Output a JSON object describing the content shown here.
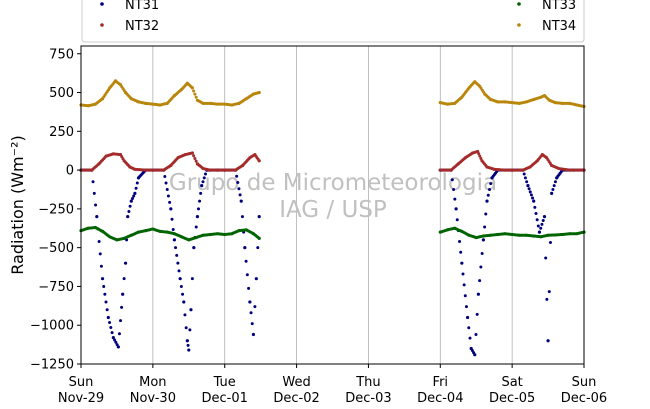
{
  "chart_data": {
    "type": "scatter",
    "ylabel": "Radiation (Wm⁻²)",
    "watermark": [
      "Grupo de Micrometeorologia",
      "IAG / USP"
    ],
    "ylim": [
      -1250,
      800
    ],
    "yticks": [
      -1250,
      -1000,
      -750,
      -500,
      -250,
      0,
      250,
      500,
      750
    ],
    "ytick_labels": [
      "−1250",
      "−1000",
      "−750",
      "−500",
      "−250",
      "0",
      "250",
      "500",
      "750"
    ],
    "xlim": [
      0,
      7
    ],
    "xticks": [
      {
        "day": 0,
        "line1": "Sun",
        "line2": "Nov-29"
      },
      {
        "day": 1,
        "line1": "Mon",
        "line2": "Nov-30"
      },
      {
        "day": 2,
        "line1": "Tue",
        "line2": "Dec-01"
      },
      {
        "day": 3,
        "line1": "Wed",
        "line2": "Dec-02"
      },
      {
        "day": 4,
        "line1": "Thu",
        "line2": "Dec-03"
      },
      {
        "day": 5,
        "line1": "Fri",
        "line2": "Dec-04"
      },
      {
        "day": 6,
        "line1": "Sat",
        "line2": "Dec-05"
      },
      {
        "day": 7,
        "line1": "Sun",
        "line2": "Dec-06"
      }
    ],
    "grid": "vertical",
    "legend_position": "above plot",
    "series": [
      {
        "name": "NT31",
        "color": "#00007f",
        "points": [
          [
            0.0,
            0
          ],
          [
            0.15,
            0
          ],
          [
            0.22,
            -300
          ],
          [
            0.3,
            -700
          ],
          [
            0.38,
            -950
          ],
          [
            0.45,
            -1080
          ],
          [
            0.52,
            -1140
          ],
          [
            0.58,
            -800
          ],
          [
            0.62,
            -600
          ],
          [
            0.65,
            -300
          ],
          [
            0.7,
            -200
          ],
          [
            0.75,
            -150
          ],
          [
            0.8,
            -50
          ],
          [
            0.9,
            0
          ],
          [
            1.0,
            0
          ],
          [
            1.15,
            0
          ],
          [
            1.25,
            -250
          ],
          [
            1.3,
            -450
          ],
          [
            1.38,
            -700
          ],
          [
            1.43,
            -850
          ],
          [
            1.48,
            -1100
          ],
          [
            1.5,
            -1160
          ],
          [
            1.53,
            -900
          ],
          [
            1.57,
            -500
          ],
          [
            1.62,
            -300
          ],
          [
            1.68,
            -100
          ],
          [
            1.75,
            0
          ],
          [
            1.9,
            0
          ],
          [
            2.0,
            0
          ],
          [
            2.15,
            0
          ],
          [
            2.23,
            -200
          ],
          [
            2.28,
            -500
          ],
          [
            2.35,
            -850
          ],
          [
            2.4,
            -1060
          ],
          [
            2.44,
            -700
          ],
          [
            2.48,
            -300
          ],
          [
            5.0,
            0
          ],
          [
            5.15,
            0
          ],
          [
            5.22,
            -250
          ],
          [
            5.3,
            -600
          ],
          [
            5.38,
            -950
          ],
          [
            5.43,
            -1150
          ],
          [
            5.48,
            -1190
          ],
          [
            5.53,
            -800
          ],
          [
            5.6,
            -450
          ],
          [
            5.65,
            -200
          ],
          [
            5.72,
            -50
          ],
          [
            5.8,
            0
          ],
          [
            6.0,
            0
          ],
          [
            6.15,
            0
          ],
          [
            6.22,
            -100
          ],
          [
            6.3,
            -200
          ],
          [
            6.38,
            -400
          ],
          [
            6.45,
            -300
          ],
          [
            6.5,
            -1100
          ],
          [
            6.55,
            -150
          ],
          [
            6.62,
            -50
          ],
          [
            6.7,
            0
          ],
          [
            6.85,
            0
          ],
          [
            7.0,
            0
          ]
        ]
      },
      {
        "name": "NT32",
        "color": "#a52a2a",
        "points": [
          [
            0.0,
            0
          ],
          [
            0.15,
            0
          ],
          [
            0.25,
            40
          ],
          [
            0.35,
            90
          ],
          [
            0.45,
            105
          ],
          [
            0.55,
            100
          ],
          [
            0.6,
            60
          ],
          [
            0.68,
            20
          ],
          [
            0.75,
            5
          ],
          [
            0.9,
            0
          ],
          [
            1.0,
            0
          ],
          [
            1.15,
            0
          ],
          [
            1.25,
            30
          ],
          [
            1.35,
            80
          ],
          [
            1.45,
            100
          ],
          [
            1.55,
            110
          ],
          [
            1.62,
            40
          ],
          [
            1.7,
            10
          ],
          [
            1.8,
            0
          ],
          [
            2.0,
            0
          ],
          [
            2.15,
            0
          ],
          [
            2.25,
            30
          ],
          [
            2.35,
            80
          ],
          [
            2.42,
            100
          ],
          [
            2.48,
            60
          ],
          [
            5.0,
            0
          ],
          [
            5.15,
            0
          ],
          [
            5.25,
            40
          ],
          [
            5.35,
            80
          ],
          [
            5.45,
            110
          ],
          [
            5.52,
            120
          ],
          [
            5.58,
            60
          ],
          [
            5.65,
            20
          ],
          [
            5.75,
            5
          ],
          [
            5.9,
            0
          ],
          [
            6.0,
            0
          ],
          [
            6.15,
            0
          ],
          [
            6.25,
            20
          ],
          [
            6.35,
            60
          ],
          [
            6.42,
            100
          ],
          [
            6.48,
            80
          ],
          [
            6.55,
            30
          ],
          [
            6.65,
            10
          ],
          [
            6.8,
            0
          ],
          [
            7.0,
            0
          ]
        ]
      },
      {
        "name": "NT33",
        "color": "#006400",
        "points": [
          [
            0.0,
            -390
          ],
          [
            0.1,
            -375
          ],
          [
            0.2,
            -370
          ],
          [
            0.3,
            -395
          ],
          [
            0.4,
            -430
          ],
          [
            0.5,
            -450
          ],
          [
            0.6,
            -440
          ],
          [
            0.7,
            -420
          ],
          [
            0.8,
            -400
          ],
          [
            0.9,
            -390
          ],
          [
            1.0,
            -380
          ],
          [
            1.1,
            -395
          ],
          [
            1.2,
            -400
          ],
          [
            1.3,
            -410
          ],
          [
            1.4,
            -430
          ],
          [
            1.5,
            -450
          ],
          [
            1.6,
            -435
          ],
          [
            1.7,
            -420
          ],
          [
            1.8,
            -415
          ],
          [
            1.9,
            -410
          ],
          [
            2.0,
            -415
          ],
          [
            2.1,
            -410
          ],
          [
            2.2,
            -390
          ],
          [
            2.3,
            -385
          ],
          [
            2.4,
            -410
          ],
          [
            2.48,
            -440
          ],
          [
            5.0,
            -400
          ],
          [
            5.1,
            -385
          ],
          [
            5.2,
            -375
          ],
          [
            5.3,
            -395
          ],
          [
            5.4,
            -420
          ],
          [
            5.5,
            -435
          ],
          [
            5.6,
            -425
          ],
          [
            5.7,
            -420
          ],
          [
            5.8,
            -415
          ],
          [
            5.9,
            -410
          ],
          [
            6.0,
            -415
          ],
          [
            6.1,
            -420
          ],
          [
            6.2,
            -420
          ],
          [
            6.3,
            -425
          ],
          [
            6.4,
            -430
          ],
          [
            6.5,
            -420
          ],
          [
            6.6,
            -418
          ],
          [
            6.7,
            -415
          ],
          [
            6.8,
            -410
          ],
          [
            6.9,
            -410
          ],
          [
            7.0,
            -400
          ]
        ]
      },
      {
        "name": "NT34",
        "color": "#b8860b",
        "points": [
          [
            0.0,
            420
          ],
          [
            0.1,
            415
          ],
          [
            0.2,
            425
          ],
          [
            0.3,
            460
          ],
          [
            0.4,
            530
          ],
          [
            0.48,
            575
          ],
          [
            0.55,
            550
          ],
          [
            0.62,
            500
          ],
          [
            0.7,
            460
          ],
          [
            0.8,
            440
          ],
          [
            0.9,
            430
          ],
          [
            1.0,
            425
          ],
          [
            1.1,
            420
          ],
          [
            1.2,
            430
          ],
          [
            1.3,
            480
          ],
          [
            1.4,
            520
          ],
          [
            1.48,
            560
          ],
          [
            1.55,
            530
          ],
          [
            1.62,
            450
          ],
          [
            1.7,
            430
          ],
          [
            1.8,
            430
          ],
          [
            1.9,
            425
          ],
          [
            2.0,
            425
          ],
          [
            2.1,
            420
          ],
          [
            2.2,
            430
          ],
          [
            2.3,
            460
          ],
          [
            2.4,
            490
          ],
          [
            2.48,
            500
          ],
          [
            5.0,
            435
          ],
          [
            5.1,
            425
          ],
          [
            5.2,
            430
          ],
          [
            5.3,
            470
          ],
          [
            5.4,
            530
          ],
          [
            5.48,
            570
          ],
          [
            5.55,
            540
          ],
          [
            5.62,
            490
          ],
          [
            5.7,
            455
          ],
          [
            5.8,
            440
          ],
          [
            5.9,
            440
          ],
          [
            6.0,
            435
          ],
          [
            6.1,
            430
          ],
          [
            6.2,
            440
          ],
          [
            6.3,
            455
          ],
          [
            6.4,
            470
          ],
          [
            6.45,
            480
          ],
          [
            6.52,
            450
          ],
          [
            6.6,
            435
          ],
          [
            6.7,
            430
          ],
          [
            6.8,
            430
          ],
          [
            6.9,
            420
          ],
          [
            7.0,
            410
          ]
        ]
      }
    ]
  }
}
